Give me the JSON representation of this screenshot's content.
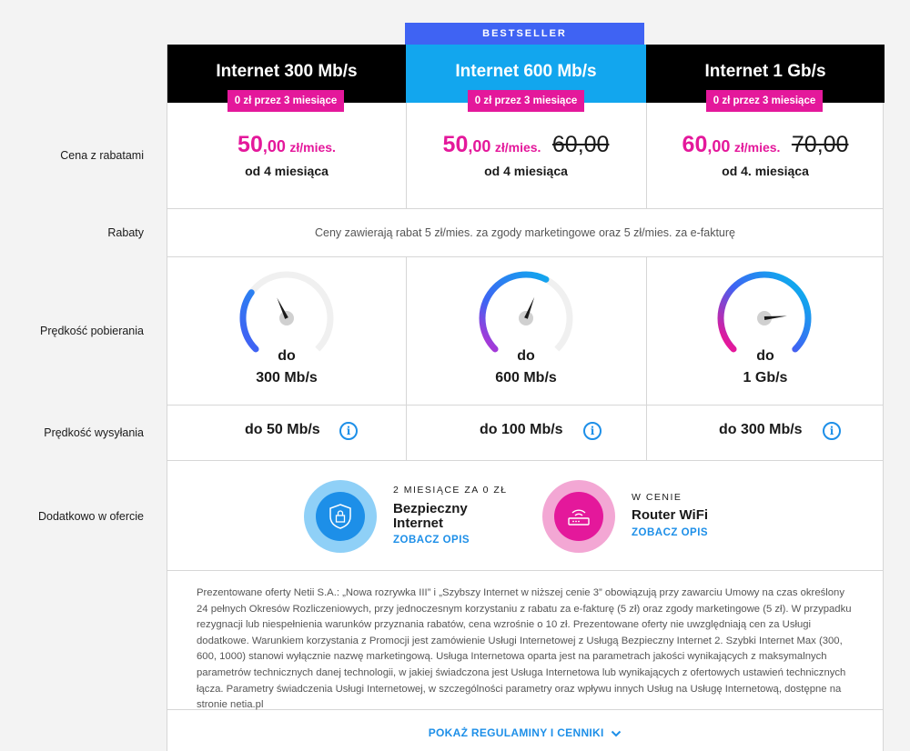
{
  "plans": [
    {
      "title": "Internet 300 Mb/s",
      "promo": "0 zł przez 3 miesiące",
      "price_int": "50",
      "price_dec": ",00",
      "price_unit": "zł/mies.",
      "old_price": "",
      "from": "od 4 miesiąca",
      "download_prefix": "do",
      "download": "300 Mb/s",
      "download_fraction": 0.3,
      "upload": "do 50 Mb/s"
    },
    {
      "title": "Internet 600 Mb/s",
      "promo": "0 zł przez 3 miesiące",
      "price_int": "50",
      "price_dec": ",00",
      "price_unit": "zł/mies.",
      "old_price": "60,00",
      "from": "od 4 miesiąca",
      "download_prefix": "do",
      "download": "600 Mb/s",
      "download_fraction": 0.6,
      "upload": "do 100 Mb/s"
    },
    {
      "title": "Internet 1 Gb/s",
      "promo": "0 zł przez 3 miesiące",
      "price_int": "60",
      "price_dec": ",00",
      "price_unit": "zł/mies.",
      "old_price": "70,00",
      "from": "od 4. miesiąca",
      "download_prefix": "do",
      "download": "1 Gb/s",
      "download_fraction": 1.0,
      "upload": "do 300 Mb/s"
    }
  ],
  "bestseller": "BESTSELLER",
  "row_labels": {
    "price": "Cena z rabatami",
    "discounts": "Rabaty",
    "download": "Prędkość pobierania",
    "upload": "Prędkość wysyłania",
    "extras": "Dodatkowo w ofercie"
  },
  "discounts_text": "Ceny zawierają rabat 5 zł/mies. za zgody marketingowe oraz 5 zł/mies. za e-fakturę",
  "extras": [
    {
      "small": "2 MIESIĄCE ZA 0 ZŁ",
      "name": "Bezpieczny Internet",
      "link": "ZOBACZ OPIS",
      "icon": "shield-lock-icon",
      "color": "#1d8fe8"
    },
    {
      "small": "W CENIE",
      "name": "Router WiFi",
      "link": "ZOBACZ OPIS",
      "icon": "router-icon",
      "color": "#e4189b"
    }
  ],
  "disclaimer": "Prezentowane oferty Netii S.A.: „Nowa rozrywka III” i „Szybszy Internet w niższej cenie 3” obowiązują przy zawarciu Umowy na czas określony 24 pełnych Okresów Rozliczeniowych, przy jednoczesnym korzystaniu z rabatu za e-fakturę (5 zł) oraz zgody marketingowe (5 zł). W przypadku rezygnacji lub niespełnienia warunków przyznania rabatów, cena wzrośnie o 10 zł. Prezentowane oferty nie uwzględniają cen za Usługi dodatkowe. Warunkiem korzystania z Promocji jest zamówienie Usługi Internetowej z Usługą Bezpieczny Internet 2. Szybki Internet Max (300, 600, 1000) stanowi wyłącznie nazwę marketingową. Usługa Internetowa oparta jest na parametrach jakości wynikających z maksymalnych parametrów technicznych danej technologii, w jakiej świadczona jest Usługa Internetowa lub wynikających z ofertowych ustawień technicznych łącza. Parametry świadczenia Usługi Internetowej, w szczególności parametry oraz wpływu innych Usług na Usługę Internetową, dostępne na stronie netia.pl",
  "show_rules": "POKAŻ REGULAMINY I CENNIKI",
  "info_glyph": "i"
}
